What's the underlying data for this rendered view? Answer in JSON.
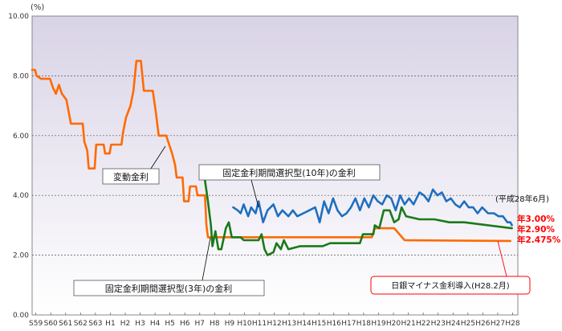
{
  "chart_data": {
    "type": "line",
    "title": "",
    "xlabel": "",
    "ylabel": "",
    "y_unit": "(%)",
    "ylim": [
      0,
      10
    ],
    "xlim": [
      1984.0,
      2016.6
    ],
    "grid": true,
    "y_ticks": [
      "0.00",
      "2.00",
      "4.00",
      "6.00",
      "8.00",
      "10.00"
    ],
    "x_ticks": [
      {
        "label": "S59",
        "x": 1984.25
      },
      {
        "label": "S60",
        "x": 1985.25
      },
      {
        "label": "S61",
        "x": 1986.25
      },
      {
        "label": "S62",
        "x": 1987.25
      },
      {
        "label": "S63",
        "x": 1988.25
      },
      {
        "label": "H1",
        "x": 1989.25
      },
      {
        "label": "H2",
        "x": 1990.25
      },
      {
        "label": "H3",
        "x": 1991.25
      },
      {
        "label": "H4",
        "x": 1992.25
      },
      {
        "label": "H5",
        "x": 1993.25
      },
      {
        "label": "H6",
        "x": 1994.25
      },
      {
        "label": "H7",
        "x": 1995.25
      },
      {
        "label": "H8",
        "x": 1996.25
      },
      {
        "label": "H9",
        "x": 1997.25
      },
      {
        "label": "H10",
        "x": 1998.25
      },
      {
        "label": "H11",
        "x": 1999.25
      },
      {
        "label": "H12",
        "x": 2000.25
      },
      {
        "label": "H13",
        "x": 2001.25
      },
      {
        "label": "H14",
        "x": 2002.25
      },
      {
        "label": "H15",
        "x": 2003.25
      },
      {
        "label": "H16",
        "x": 2004.25
      },
      {
        "label": "H17",
        "x": 2005.25
      },
      {
        "label": "H18",
        "x": 2006.25
      },
      {
        "label": "H19",
        "x": 2007.25
      },
      {
        "label": "H20",
        "x": 2008.25
      },
      {
        "label": "H21",
        "x": 2009.25
      },
      {
        "label": "H22",
        "x": 2010.25
      },
      {
        "label": "H23",
        "x": 2011.25
      },
      {
        "label": "H24",
        "x": 2012.25
      },
      {
        "label": "H25",
        "x": 2013.25
      },
      {
        "label": "H26",
        "x": 2014.25
      },
      {
        "label": "H27",
        "x": 2015.25
      },
      {
        "label": "H28",
        "x": 2016.25
      }
    ],
    "series": [
      {
        "key": "variable",
        "color": "#ff6a00",
        "points": [
          [
            1984.0,
            8.2
          ],
          [
            1984.2,
            8.2
          ],
          [
            1984.3,
            8.0
          ],
          [
            1984.6,
            7.9
          ],
          [
            1985.2,
            7.9
          ],
          [
            1985.4,
            7.6
          ],
          [
            1985.6,
            7.4
          ],
          [
            1985.8,
            7.7
          ],
          [
            1986.0,
            7.4
          ],
          [
            1986.3,
            7.2
          ],
          [
            1986.6,
            6.4
          ],
          [
            1987.4,
            6.4
          ],
          [
            1987.5,
            5.8
          ],
          [
            1987.7,
            5.5
          ],
          [
            1987.8,
            4.9
          ],
          [
            1988.2,
            4.9
          ],
          [
            1988.3,
            5.7
          ],
          [
            1988.8,
            5.7
          ],
          [
            1988.9,
            5.4
          ],
          [
            1989.2,
            5.4
          ],
          [
            1989.3,
            5.7
          ],
          [
            1990.0,
            5.7
          ],
          [
            1990.1,
            6.1
          ],
          [
            1990.3,
            6.6
          ],
          [
            1990.6,
            7.0
          ],
          [
            1990.8,
            7.5
          ],
          [
            1991.0,
            8.5
          ],
          [
            1991.3,
            8.5
          ],
          [
            1991.5,
            7.5
          ],
          [
            1992.1,
            7.5
          ],
          [
            1992.3,
            6.8
          ],
          [
            1992.5,
            6.0
          ],
          [
            1993.0,
            6.0
          ],
          [
            1993.2,
            5.7
          ],
          [
            1993.4,
            5.4
          ],
          [
            1993.6,
            5.0
          ],
          [
            1993.7,
            4.6
          ],
          [
            1994.1,
            4.6
          ],
          [
            1994.2,
            3.8
          ],
          [
            1994.5,
            3.8
          ],
          [
            1994.6,
            4.3
          ],
          [
            1995.0,
            4.3
          ],
          [
            1995.1,
            4.0
          ],
          [
            1995.6,
            4.0
          ],
          [
            1995.7,
            3.0
          ],
          [
            1995.8,
            2.6
          ],
          [
            2006.8,
            2.6
          ],
          [
            2007.0,
            2.9
          ],
          [
            2008.3,
            2.9
          ],
          [
            2009.0,
            2.5
          ],
          [
            2016.1,
            2.475
          ]
        ]
      },
      {
        "key": "fixed3",
        "color": "#1a7a1a",
        "points": [
          [
            1995.6,
            4.5
          ],
          [
            1995.8,
            3.8
          ],
          [
            1996.0,
            3.0
          ],
          [
            1996.1,
            2.3
          ],
          [
            1996.3,
            2.8
          ],
          [
            1996.5,
            2.2
          ],
          [
            1996.7,
            2.2
          ],
          [
            1997.0,
            2.9
          ],
          [
            1997.2,
            3.1
          ],
          [
            1997.4,
            2.6
          ],
          [
            1998.0,
            2.6
          ],
          [
            1998.2,
            2.5
          ],
          [
            1999.2,
            2.5
          ],
          [
            1999.4,
            2.7
          ],
          [
            1999.6,
            2.2
          ],
          [
            1999.8,
            2.0
          ],
          [
            2000.2,
            2.1
          ],
          [
            2000.4,
            2.4
          ],
          [
            2000.7,
            2.2
          ],
          [
            2000.9,
            2.5
          ],
          [
            2001.2,
            2.2
          ],
          [
            2002.0,
            2.3
          ],
          [
            2003.5,
            2.3
          ],
          [
            2004.0,
            2.4
          ],
          [
            2006.0,
            2.4
          ],
          [
            2006.2,
            2.7
          ],
          [
            2006.6,
            2.7
          ],
          [
            2006.9,
            2.7
          ],
          [
            2007.0,
            3.0
          ],
          [
            2007.3,
            2.9
          ],
          [
            2007.6,
            3.5
          ],
          [
            2008.0,
            3.5
          ],
          [
            2008.3,
            3.1
          ],
          [
            2008.6,
            3.2
          ],
          [
            2008.8,
            3.6
          ],
          [
            2009.1,
            3.3
          ],
          [
            2010.0,
            3.2
          ],
          [
            2011.0,
            3.2
          ],
          [
            2012.0,
            3.1
          ],
          [
            2013.0,
            3.1
          ],
          [
            2016.2,
            2.9
          ]
        ]
      },
      {
        "key": "fixed10",
        "color": "#1f6fbf",
        "points": [
          [
            1997.5,
            3.6
          ],
          [
            1997.8,
            3.5
          ],
          [
            1998.0,
            3.4
          ],
          [
            1998.2,
            3.7
          ],
          [
            1998.5,
            3.3
          ],
          [
            1998.7,
            3.6
          ],
          [
            1999.0,
            3.4
          ],
          [
            1999.2,
            3.8
          ],
          [
            1999.5,
            3.1
          ],
          [
            1999.8,
            3.5
          ],
          [
            2000.2,
            3.7
          ],
          [
            2000.5,
            3.3
          ],
          [
            2000.8,
            3.5
          ],
          [
            2001.2,
            3.3
          ],
          [
            2001.5,
            3.5
          ],
          [
            2001.8,
            3.3
          ],
          [
            2002.2,
            3.4
          ],
          [
            2002.6,
            3.5
          ],
          [
            2003.0,
            3.6
          ],
          [
            2003.3,
            3.1
          ],
          [
            2003.6,
            3.8
          ],
          [
            2003.9,
            3.4
          ],
          [
            2004.2,
            3.9
          ],
          [
            2004.5,
            3.5
          ],
          [
            2004.8,
            3.3
          ],
          [
            2005.1,
            3.4
          ],
          [
            2005.4,
            3.6
          ],
          [
            2005.7,
            3.9
          ],
          [
            2006.0,
            3.5
          ],
          [
            2006.3,
            3.9
          ],
          [
            2006.6,
            3.6
          ],
          [
            2006.9,
            4.0
          ],
          [
            2007.2,
            3.8
          ],
          [
            2007.5,
            3.7
          ],
          [
            2007.8,
            4.0
          ],
          [
            2008.1,
            3.9
          ],
          [
            2008.4,
            3.5
          ],
          [
            2008.7,
            4.0
          ],
          [
            2009.0,
            3.7
          ],
          [
            2009.3,
            3.9
          ],
          [
            2009.6,
            3.7
          ],
          [
            2010.0,
            4.1
          ],
          [
            2010.3,
            4.0
          ],
          [
            2010.6,
            3.8
          ],
          [
            2010.9,
            4.2
          ],
          [
            2011.2,
            4.0
          ],
          [
            2011.5,
            4.1
          ],
          [
            2011.8,
            3.8
          ],
          [
            2012.1,
            3.9
          ],
          [
            2012.4,
            3.7
          ],
          [
            2012.7,
            3.6
          ],
          [
            2013.0,
            3.8
          ],
          [
            2013.3,
            3.6
          ],
          [
            2013.6,
            3.6
          ],
          [
            2013.9,
            3.4
          ],
          [
            2014.2,
            3.6
          ],
          [
            2014.6,
            3.4
          ],
          [
            2015.0,
            3.4
          ],
          [
            2015.3,
            3.3
          ],
          [
            2015.6,
            3.3
          ],
          [
            2015.9,
            3.1
          ],
          [
            2016.1,
            3.1
          ],
          [
            2016.2,
            3.0
          ]
        ]
      }
    ],
    "annotations": {
      "variable": "変動金利",
      "fixed10": "固定金利期間選択型(10年)の金利",
      "fixed3": "固定金利期間選択型(3年)の金利",
      "date": "(平成28年6月)",
      "rate_fixed10": "年3.00%",
      "rate_fixed3": "年2.90%",
      "rate_variable": "年2.475%",
      "boj": "日銀マイナス金利導入(H28.2月)"
    }
  }
}
